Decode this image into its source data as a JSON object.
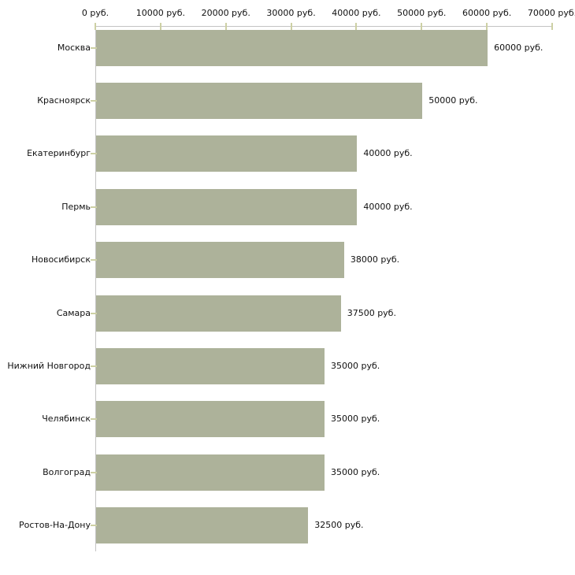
{
  "chart_data": {
    "type": "bar",
    "orientation": "horizontal",
    "title": "",
    "xlabel": "",
    "ylabel": "",
    "xlim": [
      0,
      70000
    ],
    "x_ticks": [
      0,
      10000,
      20000,
      30000,
      40000,
      50000,
      60000,
      70000
    ],
    "x_tick_labels": [
      "0 руб.",
      "10000 руб.",
      "20000 руб.",
      "30000 руб.",
      "40000 руб.",
      "50000 руб.",
      "60000 руб.",
      "70000 руб."
    ],
    "categories": [
      "Москва",
      "Красноярск",
      "Екатеринбург",
      "Пермь",
      "Новосибирск",
      "Самара",
      "Нижний Новгород",
      "Челябинск",
      "Волгоград",
      "Ростов-На-Дону"
    ],
    "values": [
      60000,
      50000,
      40000,
      40000,
      38000,
      37500,
      35000,
      35000,
      35000,
      32500
    ],
    "value_labels": [
      "60000 руб.",
      "50000 руб.",
      "40000 руб.",
      "40000 руб.",
      "38000 руб.",
      "37500 руб.",
      "35000 руб.",
      "35000 руб.",
      "35000 руб.",
      "32500 руб."
    ],
    "grid": false,
    "legend": null,
    "legend_position": "none"
  },
  "colors": {
    "bar": "#adb29a",
    "axis_line": "#c3c3c3",
    "tick_mark": "#cdd0a4",
    "text": "#111111",
    "background": "#ffffff"
  }
}
